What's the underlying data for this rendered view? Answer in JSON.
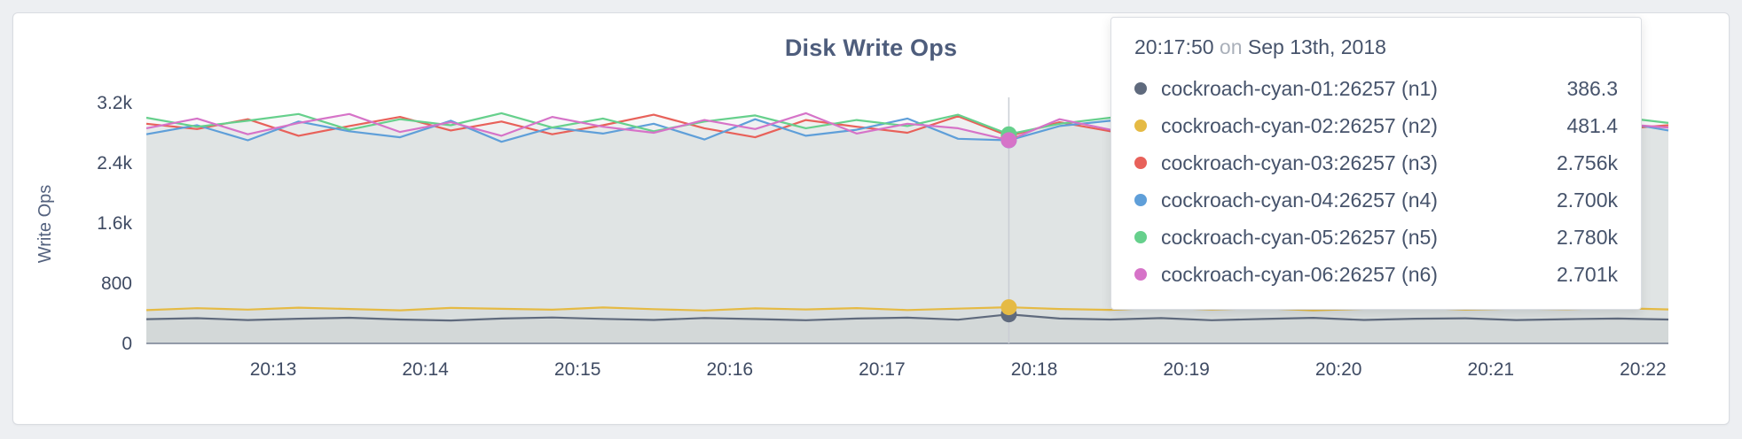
{
  "page": {
    "title": "Disk Write Ops"
  },
  "chart_data": {
    "type": "line",
    "title": "Disk Write Ops",
    "xlabel": "",
    "ylabel": "Write Ops",
    "ylim": [
      0,
      3200
    ],
    "grid": false,
    "legend_position": "tooltip-top-right",
    "area_fill": "rgba(112,121,134,0.055)",
    "axis_line_color": "#768092",
    "hover_line_color": "#c9cdd4",
    "x_start_seconds": 10,
    "x_step_seconds": 20,
    "x_domain_seconds": [
      10,
      610
    ],
    "yticks": [
      {
        "v": 0,
        "label": "0"
      },
      {
        "v": 800,
        "label": "800"
      },
      {
        "v": 1600,
        "label": "1.6k"
      },
      {
        "v": 2400,
        "label": "2.4k"
      },
      {
        "v": 3200,
        "label": "3.2k"
      }
    ],
    "xticks": [
      {
        "t": 60,
        "label": "20:13"
      },
      {
        "t": 120,
        "label": "20:14"
      },
      {
        "t": 180,
        "label": "20:15"
      },
      {
        "t": 240,
        "label": "20:16"
      },
      {
        "t": 300,
        "label": "20:17"
      },
      {
        "t": 360,
        "label": "20:18"
      },
      {
        "t": 420,
        "label": "20:19"
      },
      {
        "t": 480,
        "label": "20:20"
      },
      {
        "t": 540,
        "label": "20:21"
      },
      {
        "t": 600,
        "label": "20:22"
      }
    ],
    "hover": {
      "t": 350,
      "index": 17,
      "time": "20:17:50",
      "conj": "on",
      "date": "Sep 13th, 2018"
    },
    "series": [
      {
        "name": "cockroach-cyan-01:26257 (n1)",
        "color": "#5f6a7d",
        "hover_label": "386.3",
        "values": [
          322,
          335,
          310,
          328,
          341,
          318,
          305,
          330,
          345,
          326,
          312,
          338,
          324,
          308,
          331,
          342,
          315,
          386.3,
          330,
          318,
          336,
          308,
          325,
          340,
          312,
          328,
          334,
          310,
          322,
          330,
          318
        ]
      },
      {
        "name": "cockroach-cyan-02:26257 (n2)",
        "color": "#e5ba44",
        "hover_label": "481.4",
        "values": [
          442,
          468,
          450,
          475,
          458,
          440,
          472,
          460,
          448,
          478,
          455,
          438,
          466,
          452,
          470,
          444,
          462,
          481.4,
          458,
          446,
          474,
          452,
          468,
          440,
          460,
          476,
          450,
          464,
          455,
          470,
          452
        ]
      },
      {
        "name": "cockroach-cyan-03:26257 (n3)",
        "color": "#e8615a",
        "hover_label": "2.756k",
        "values": [
          2920,
          2850,
          2980,
          2760,
          2890,
          3010,
          2830,
          2950,
          2780,
          2900,
          3040,
          2860,
          2740,
          2970,
          2880,
          2800,
          3020,
          2756,
          2940,
          2820,
          2960,
          2780,
          2910,
          3000,
          2840,
          2760,
          2930,
          2870,
          2990,
          2850,
          2900
        ]
      },
      {
        "name": "cockroach-cyan-04:26257 (n4)",
        "color": "#5f9fd9",
        "hover_label": "2.700k",
        "values": [
          2780,
          2900,
          2700,
          2950,
          2820,
          2740,
          2960,
          2680,
          2870,
          2790,
          2920,
          2710,
          2980,
          2760,
          2840,
          2990,
          2720,
          2700,
          2890,
          2960,
          2750,
          2870,
          2690,
          2930,
          2800,
          2960,
          2730,
          2900,
          2770,
          2950,
          2830
        ]
      },
      {
        "name": "cockroach-cyan-05:26257 (n5)",
        "color": "#66d08c",
        "hover_label": "2.780k",
        "values": [
          3000,
          2880,
          2960,
          3050,
          2840,
          2980,
          2900,
          3060,
          2870,
          2990,
          2820,
          2950,
          3030,
          2860,
          2970,
          2890,
          3040,
          2780,
          2920,
          3000,
          2850,
          2980,
          2910,
          2830,
          3020,
          2890,
          2960,
          2800,
          2940,
          3010,
          2930
        ]
      },
      {
        "name": "cockroach-cyan-06:26257 (n6)",
        "color": "#d673c8",
        "hover_label": "2.701k",
        "values": [
          2860,
          2990,
          2780,
          2930,
          3050,
          2810,
          2940,
          2760,
          3010,
          2880,
          2800,
          2970,
          2850,
          3060,
          2790,
          2920,
          2860,
          2701,
          2980,
          2840,
          2900,
          3030,
          2770,
          2890,
          2950,
          2810,
          2980,
          2860,
          2740,
          2920,
          2870
        ]
      }
    ]
  }
}
